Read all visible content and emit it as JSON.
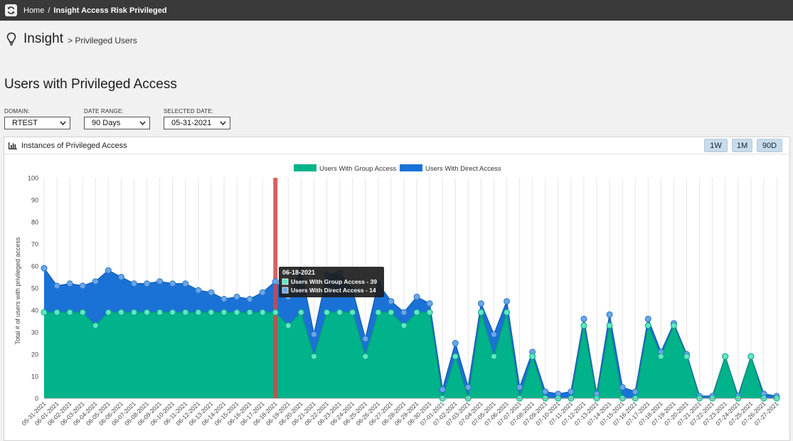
{
  "breadcrumb": {
    "home": "Home",
    "separator": "/",
    "current": "Insight Access Risk Privileged"
  },
  "header": {
    "title": "Insight",
    "subtitle": "> Privileged Users"
  },
  "page_title": "Users with Privileged Access",
  "filters": {
    "domain": {
      "label": "DOMAIN:",
      "value": "RTEST"
    },
    "date_range": {
      "label": "DATE RANGE:",
      "value": "90 Days"
    },
    "selected_date": {
      "label": "SELECTED DATE:",
      "value": "05-31-2021"
    }
  },
  "panel": {
    "title": "Instances of Privileged Access",
    "buttons": [
      "1W",
      "1M",
      "90D"
    ]
  },
  "colors": {
    "group": "#00b38a",
    "direct": "#1a72d6",
    "topbar": "#3a3a3a",
    "selection": "#d64545"
  },
  "tooltip": {
    "date": "06-18-2021",
    "group": "Users With Group Access - 39",
    "direct": "Users With Direct Access - 14"
  },
  "chart_data": {
    "type": "area",
    "stacked": true,
    "ylabel": "Total # of users with privileged access",
    "ylim": [
      0,
      100
    ],
    "yticks": [
      0,
      10,
      20,
      30,
      40,
      50,
      60,
      70,
      80,
      90,
      100
    ],
    "highlight_date": "06-18-2021",
    "x": [
      "05-31-2021",
      "06-01-2021",
      "06-02-2021",
      "06-03-2021",
      "06-04-2021",
      "06-05-2021",
      "06-06-2021",
      "06-07-2021",
      "06-08-2021",
      "06-09-2021",
      "06-10-2021",
      "06-11-2021",
      "06-12-2021",
      "06-13-2021",
      "06-14-2021",
      "06-15-2021",
      "06-16-2021",
      "06-17-2021",
      "06-18-2021",
      "06-19-2021",
      "06-20-2021",
      "06-21-2021",
      "06-22-2021",
      "06-23-2021",
      "06-24-2021",
      "06-25-2021",
      "06-26-2021",
      "06-27-2021",
      "06-28-2021",
      "06-29-2021",
      "06-30-2021",
      "07-01-2021",
      "07-02-2021",
      "07-03-2021",
      "07-04-2021",
      "07-05-2021",
      "07-06-2021",
      "07-07-2021",
      "07-08-2021",
      "07-09-2021",
      "07-10-2021",
      "07-11-2021",
      "07-12-2021",
      "07-13-2021",
      "07-14-2021",
      "07-15-2021",
      "07-16-2021",
      "07-17-2021",
      "07-18-2021",
      "07-19-2021",
      "07-20-2021",
      "07-21-2021",
      "07-22-2021",
      "07-23-2021",
      "07-24-2021",
      "07-25-2021",
      "07-26-2021",
      "07-27-2021"
    ],
    "series": [
      {
        "name": "Users With Group Access",
        "color": "#00b38a",
        "values": [
          39,
          39,
          39,
          39,
          33,
          39,
          39,
          39,
          39,
          39,
          39,
          39,
          39,
          39,
          39,
          39,
          39,
          39,
          39,
          33,
          39,
          19,
          39,
          39,
          39,
          19,
          39,
          39,
          33,
          39,
          39,
          0,
          19,
          0,
          39,
          19,
          39,
          0,
          19,
          0,
          0,
          0,
          33,
          0,
          33,
          0,
          0,
          33,
          19,
          33,
          19,
          0,
          0,
          19,
          0,
          19,
          0,
          0
        ]
      },
      {
        "name": "Users With Direct Access",
        "color": "#1a72d6",
        "values": [
          20,
          12,
          13,
          12,
          20,
          19,
          16,
          13,
          13,
          14,
          13,
          13,
          10,
          9,
          6,
          7,
          6,
          9,
          14,
          13,
          19,
          10,
          17,
          18,
          10,
          8,
          13,
          5,
          6,
          7,
          4,
          4,
          6,
          5,
          4,
          10,
          5,
          5,
          2,
          3,
          2,
          3,
          3,
          2,
          5,
          5,
          3,
          3,
          2,
          1,
          1,
          1,
          1,
          0,
          1,
          0,
          2,
          1
        ]
      }
    ]
  }
}
